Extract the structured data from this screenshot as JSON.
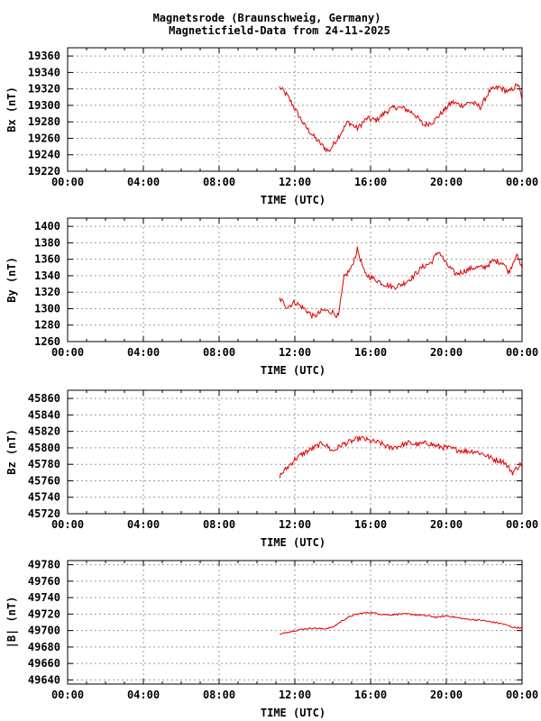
{
  "page": {
    "title_line1": "Magnetsrode (Braunschweig, Germany)",
    "title_line2": "Magneticfield-Data from 24-11-2025"
  },
  "colors": {
    "trace": "#e00000",
    "grid": "#9a9a9a",
    "frame": "#000000"
  },
  "chart_data": [
    {
      "type": "line",
      "name": "Bx",
      "xlabel": "TIME (UTC)",
      "ylabel": "Bx (nT)",
      "x_ticks": [
        "00:00",
        "04:00",
        "08:00",
        "12:00",
        "16:00",
        "20:00",
        "00:00"
      ],
      "xlim": [
        0,
        24
      ],
      "ylim": [
        19220,
        19370
      ],
      "y_ticks": [
        19220,
        19240,
        19260,
        19280,
        19300,
        19320,
        19340,
        19360
      ],
      "grid": true,
      "series": [
        {
          "x": [
            11.2,
            11.6,
            12.0,
            12.5,
            13.0,
            13.5,
            13.8,
            14.3,
            14.8,
            15.3,
            15.8,
            16.3,
            16.8,
            17.3,
            17.8,
            18.3,
            18.8,
            19.3,
            19.8,
            20.3,
            20.8,
            21.3,
            21.8,
            22.3,
            22.8,
            23.3,
            23.8,
            24.0
          ],
          "values": [
            19322,
            19312,
            19296,
            19276,
            19262,
            19250,
            19244,
            19262,
            19280,
            19272,
            19284,
            19282,
            19292,
            19298,
            19296,
            19290,
            19276,
            19280,
            19292,
            19304,
            19300,
            19304,
            19298,
            19318,
            19322,
            19316,
            19326,
            19306
          ]
        }
      ]
    },
    {
      "type": "line",
      "name": "By",
      "xlabel": "TIME (UTC)",
      "ylabel": "By (nT)",
      "x_ticks": [
        "00:00",
        "04:00",
        "08:00",
        "12:00",
        "16:00",
        "20:00",
        "00:00"
      ],
      "xlim": [
        0,
        24
      ],
      "ylim": [
        1260,
        1410
      ],
      "y_ticks": [
        1260,
        1280,
        1300,
        1320,
        1340,
        1360,
        1380,
        1400
      ],
      "grid": true,
      "series": [
        {
          "x": [
            11.2,
            11.6,
            12.0,
            12.5,
            13.0,
            13.5,
            14.0,
            14.3,
            14.6,
            15.0,
            15.3,
            15.7,
            16.2,
            16.7,
            17.2,
            17.7,
            18.2,
            18.7,
            19.2,
            19.6,
            20.0,
            20.5,
            21.0,
            21.5,
            22.0,
            22.5,
            23.0,
            23.3,
            23.7,
            24.0
          ],
          "values": [
            1312,
            1302,
            1308,
            1300,
            1290,
            1298,
            1296,
            1290,
            1338,
            1350,
            1372,
            1342,
            1336,
            1330,
            1326,
            1330,
            1338,
            1350,
            1356,
            1370,
            1354,
            1342,
            1346,
            1350,
            1350,
            1358,
            1356,
            1344,
            1366,
            1348
          ]
        }
      ]
    },
    {
      "type": "line",
      "name": "Bz",
      "xlabel": "TIME (UTC)",
      "ylabel": "Bz (nT)",
      "x_ticks": [
        "00:00",
        "04:00",
        "08:00",
        "12:00",
        "16:00",
        "20:00",
        "00:00"
      ],
      "xlim": [
        0,
        24
      ],
      "ylim": [
        45720,
        45870
      ],
      "y_ticks": [
        45720,
        45740,
        45760,
        45780,
        45800,
        45820,
        45840,
        45860
      ],
      "grid": true,
      "series": [
        {
          "x": [
            11.2,
            11.6,
            12.0,
            12.5,
            13.0,
            13.5,
            14.0,
            14.5,
            15.0,
            15.5,
            16.0,
            16.5,
            17.0,
            17.5,
            18.0,
            18.5,
            19.0,
            19.5,
            20.0,
            20.5,
            21.0,
            21.5,
            22.0,
            22.5,
            23.0,
            23.5,
            24.0
          ],
          "values": [
            45766,
            45776,
            45786,
            45794,
            45800,
            45806,
            45796,
            45804,
            45808,
            45812,
            45808,
            45806,
            45800,
            45802,
            45806,
            45804,
            45806,
            45802,
            45800,
            45798,
            45796,
            45796,
            45792,
            45786,
            45784,
            45770,
            45782
          ]
        }
      ]
    },
    {
      "type": "line",
      "name": "|B|",
      "xlabel": "TIME (UTC)",
      "ylabel": "|B| (nT)",
      "x_ticks": [
        "00:00",
        "04:00",
        "08:00",
        "12:00",
        "16:00",
        "20:00",
        "00:00"
      ],
      "xlim": [
        0,
        24
      ],
      "ylim": [
        49635,
        49785
      ],
      "y_ticks": [
        49640,
        49660,
        49680,
        49700,
        49720,
        49740,
        49760,
        49780
      ],
      "grid": true,
      "series": [
        {
          "x": [
            11.2,
            11.6,
            12.0,
            12.5,
            13.0,
            13.5,
            14.0,
            14.5,
            15.0,
            15.5,
            16.0,
            16.5,
            17.0,
            17.5,
            18.0,
            18.5,
            19.0,
            19.5,
            20.0,
            20.5,
            21.0,
            21.5,
            22.0,
            22.5,
            23.0,
            23.5,
            24.0
          ],
          "values": [
            49695,
            49698,
            49700,
            49702,
            49703,
            49702,
            49704,
            49712,
            49718,
            49721,
            49722,
            49720,
            49719,
            49720,
            49720,
            49719,
            49718,
            49716,
            49718,
            49716,
            49714,
            49713,
            49712,
            49710,
            49708,
            49704,
            49703
          ]
        }
      ]
    }
  ]
}
